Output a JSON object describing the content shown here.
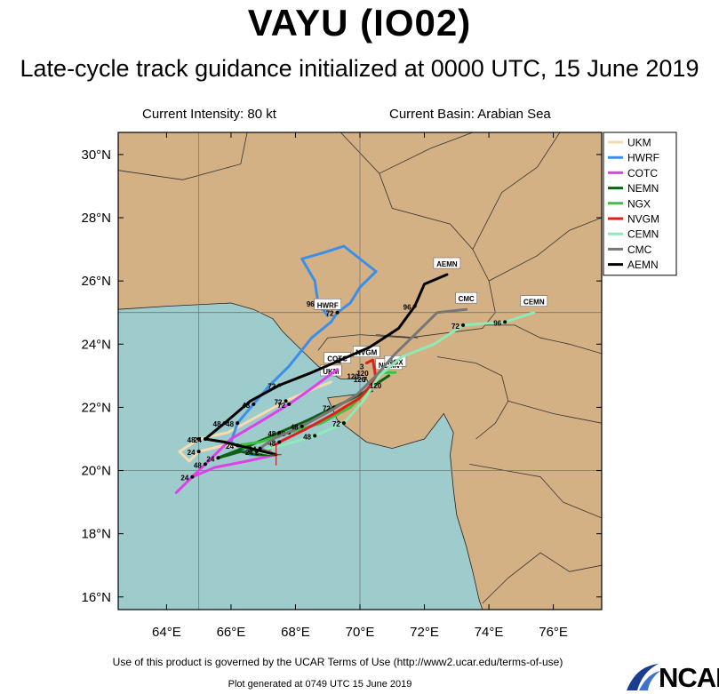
{
  "title": "VAYU (IO02)",
  "subtitle": "Late-cycle track guidance initialized at 0000 UTC, 15 June 2019",
  "current_intensity": "Current Intensity: 80 kt",
  "current_basin": "Current Basin: Arabian Sea",
  "footer": "Use of this product is governed by the UCAR Terms of Use (http://www2.ucar.edu/terms-of-use)",
  "plot_generated": "Plot generated at 0749 UTC   15 June 2019",
  "logo_text": "NCAR",
  "colors": {
    "ocean": "#9ecbcc",
    "land": "#d3b184",
    "UKM": "#f4dcb0",
    "HWRF": "#3b8fe8",
    "COTC": "#e040e8",
    "NEMN": "#0f5f14",
    "NGX": "#3cc23c",
    "NVGM": "#e02020",
    "CEMN": "#8eeab8",
    "CMC": "#777777",
    "AEMN": "#000000"
  },
  "chart_data": {
    "type": "map",
    "map_extent": {
      "lon": [
        62.5,
        77.5
      ],
      "lat": [
        15.6,
        30.7
      ]
    },
    "x_ticks": [
      "64°E",
      "66°E",
      "68°E",
      "70°E",
      "72°E",
      "74°E",
      "76°E"
    ],
    "x_tick_values": [
      64,
      66,
      68,
      70,
      72,
      74,
      76
    ],
    "y_ticks": [
      "30°N",
      "28°N",
      "26°N",
      "24°N",
      "22°N",
      "20°N",
      "18°N",
      "16°N"
    ],
    "y_tick_values": [
      30,
      28,
      26,
      24,
      22,
      20,
      18,
      16
    ],
    "gridlines": {
      "lon": [
        65,
        70
      ],
      "lat": [
        20,
        25
      ]
    },
    "legend_position": "top-right",
    "legend": [
      "UKM",
      "HWRF",
      "COTC",
      "NEMN",
      "NGX",
      "NVGM",
      "CEMN",
      "CMC",
      "AEMN"
    ],
    "tracks": [
      {
        "name": "UKM",
        "points": [
          [
            67.4,
            20.5
          ],
          [
            66.5,
            20.7
          ],
          [
            65.8,
            20.8
          ],
          [
            65.0,
            20.6
          ],
          [
            64.7,
            20.3
          ],
          [
            64.4,
            20.6
          ],
          [
            65.0,
            21.0
          ],
          [
            65.9,
            21.2
          ],
          [
            66.8,
            21.7
          ],
          [
            67.7,
            22.2
          ],
          [
            68.6,
            22.6
          ],
          [
            69.1,
            22.8
          ]
        ],
        "labeled": [
          {
            "i": 3,
            "t": "24"
          },
          {
            "i": 6,
            "t": "48"
          },
          {
            "i": 9,
            "t": "72"
          }
        ],
        "end_label": "UKM"
      },
      {
        "name": "HWRF",
        "points": [
          [
            67.4,
            20.5
          ],
          [
            66.6,
            20.5
          ],
          [
            66.0,
            20.9
          ],
          [
            66.2,
            21.5
          ],
          [
            66.7,
            22.1
          ],
          [
            67.2,
            22.7
          ],
          [
            67.8,
            23.3
          ],
          [
            68.5,
            24.2
          ],
          [
            69.1,
            24.7
          ],
          [
            69.3,
            25.0
          ],
          [
            69.7,
            25.3
          ],
          [
            70.0,
            25.8
          ],
          [
            70.5,
            26.3
          ],
          [
            69.5,
            27.1
          ],
          [
            68.9,
            26.9
          ],
          [
            68.2,
            26.7
          ],
          [
            68.6,
            26.0
          ],
          [
            68.7,
            25.3
          ],
          [
            69.0,
            24.9
          ]
        ],
        "labeled": [
          {
            "i": 3,
            "t": "48"
          },
          {
            "i": 4,
            "t": "48"
          },
          {
            "i": 17,
            "t": "96"
          },
          {
            "i": 9,
            "t": "72"
          }
        ],
        "end_label": "HWRF"
      },
      {
        "name": "COTC",
        "points": [
          [
            67.4,
            20.5
          ],
          [
            66.5,
            20.3
          ],
          [
            65.5,
            20.1
          ],
          [
            64.8,
            19.8
          ],
          [
            64.3,
            19.3
          ],
          [
            64.6,
            19.6
          ],
          [
            65.2,
            20.2
          ],
          [
            66.0,
            21.0
          ],
          [
            67.0,
            21.6
          ],
          [
            67.8,
            22.1
          ],
          [
            68.5,
            22.6
          ],
          [
            69.3,
            23.2
          ]
        ],
        "labeled": [
          {
            "i": 3,
            "t": "24"
          },
          {
            "i": 6,
            "t": "48"
          },
          {
            "i": 9,
            "t": "72"
          }
        ],
        "end_label": "COTC"
      },
      {
        "name": "NEMN",
        "points": [
          [
            67.4,
            20.5
          ],
          [
            66.8,
            20.5
          ],
          [
            66.3,
            20.6
          ],
          [
            65.6,
            20.4
          ],
          [
            66.6,
            20.8
          ],
          [
            67.5,
            21.2
          ],
          [
            68.4,
            21.6
          ],
          [
            69.2,
            22.0
          ],
          [
            70.0,
            22.4
          ],
          [
            70.6,
            22.8
          ],
          [
            70.9,
            23.0
          ]
        ],
        "labeled": [
          {
            "i": 3,
            "t": "24"
          },
          {
            "i": 5,
            "t": "48"
          },
          {
            "i": 7,
            "t": "72"
          }
        ],
        "end_label": "NEMN"
      },
      {
        "name": "NGX",
        "points": [
          [
            67.4,
            20.5
          ],
          [
            66.8,
            20.6
          ],
          [
            66.2,
            20.8
          ],
          [
            66.9,
            20.9
          ],
          [
            67.8,
            21.2
          ],
          [
            68.8,
            21.5
          ],
          [
            69.7,
            22.0
          ],
          [
            70.3,
            22.6
          ],
          [
            70.6,
            23.1
          ],
          [
            71.1,
            23.1
          ]
        ],
        "labeled": [
          {
            "i": 2,
            "t": "24"
          },
          {
            "i": 4,
            "t": "48"
          }
        ],
        "end_label": "NGX"
      },
      {
        "name": "NVGM",
        "points": [
          [
            67.4,
            20.5
          ],
          [
            67.1,
            20.6
          ],
          [
            67.5,
            20.9
          ],
          [
            68.3,
            21.3
          ],
          [
            69.2,
            21.8
          ],
          [
            70.0,
            22.3
          ],
          [
            70.5,
            22.9
          ],
          [
            70.4,
            23.5
          ],
          [
            70.2,
            23.4
          ]
        ],
        "labeled": [
          {
            "i": 1,
            "t": "24"
          },
          {
            "i": 2,
            "t": "48"
          }
        ],
        "end_label": "NVGM"
      },
      {
        "name": "CEMN",
        "points": [
          [
            67.4,
            20.5
          ],
          [
            66.8,
            20.6
          ],
          [
            67.6,
            20.8
          ],
          [
            68.6,
            21.1
          ],
          [
            69.5,
            21.5
          ],
          [
            70.1,
            22.2
          ],
          [
            70.6,
            23.0
          ],
          [
            71.3,
            23.6
          ],
          [
            72.3,
            24.0
          ],
          [
            73.2,
            24.6
          ],
          [
            74.5,
            24.7
          ],
          [
            75.4,
            25.0
          ]
        ],
        "labeled": [
          {
            "i": 1,
            "t": "24"
          },
          {
            "i": 3,
            "t": "48"
          },
          {
            "i": 4,
            "t": "72"
          },
          {
            "i": 10,
            "t": "96"
          },
          {
            "i": 9,
            "t": "72"
          }
        ],
        "end_label": "CEMN"
      },
      {
        "name": "CMC",
        "points": [
          [
            67.4,
            20.5
          ],
          [
            66.9,
            20.7
          ],
          [
            67.3,
            21.0
          ],
          [
            68.2,
            21.4
          ],
          [
            69.1,
            21.9
          ],
          [
            69.9,
            22.4
          ],
          [
            70.5,
            23.0
          ],
          [
            71.1,
            23.7
          ],
          [
            71.7,
            24.3
          ],
          [
            72.4,
            25.0
          ],
          [
            73.3,
            25.1
          ]
        ],
        "labeled": [
          {
            "i": 1,
            "t": "24"
          },
          {
            "i": 3,
            "t": "48"
          }
        ],
        "end_label": "CMC"
      },
      {
        "name": "AEMN",
        "points": [
          [
            67.4,
            20.5
          ],
          [
            66.6,
            20.7
          ],
          [
            65.8,
            20.9
          ],
          [
            65.2,
            21.0
          ],
          [
            65.8,
            21.5
          ],
          [
            66.6,
            22.2
          ],
          [
            67.5,
            22.7
          ],
          [
            68.5,
            23.1
          ],
          [
            69.4,
            23.5
          ],
          [
            70.3,
            23.9
          ],
          [
            71.2,
            24.5
          ],
          [
            71.7,
            25.2
          ],
          [
            72.0,
            25.9
          ],
          [
            72.7,
            26.2
          ]
        ],
        "labeled": [
          {
            "i": 3,
            "t": "24"
          },
          {
            "i": 4,
            "t": "48"
          },
          {
            "i": 6,
            "t": "72"
          },
          {
            "i": 11,
            "t": "96"
          }
        ],
        "end_label": "AEMN"
      }
    ],
    "inline_tags": [
      "120",
      "120",
      "120",
      "120",
      "1",
      "7",
      "3"
    ]
  }
}
